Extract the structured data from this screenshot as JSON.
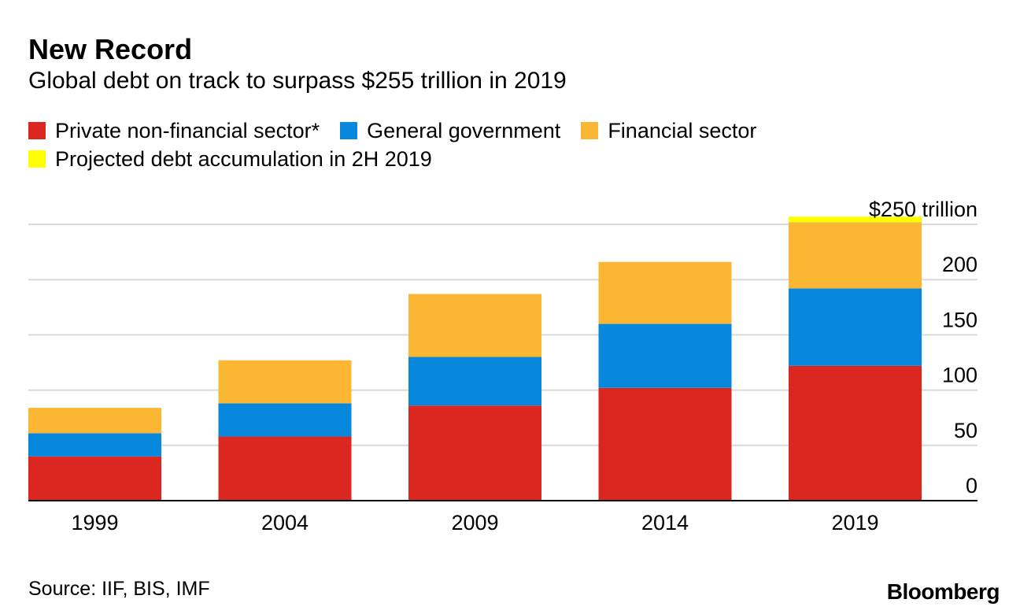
{
  "title": "New Record",
  "subtitle": "Global debt on track to surpass $255 trillion in 2019",
  "legend": [
    {
      "label": "Private non-financial sector*",
      "color": "#dc2620"
    },
    {
      "label": "General government",
      "color": "#0788dc"
    },
    {
      "label": "Financial sector",
      "color": "#fbb733"
    },
    {
      "label": "Projected debt accumulation in 2H 2019",
      "color": "#ffff00"
    }
  ],
  "chart_data": {
    "type": "bar",
    "stacked": true,
    "categories": [
      "1999",
      "2004",
      "2009",
      "2014",
      "2019"
    ],
    "series": [
      {
        "name": "Private non-financial sector*",
        "color": "#dc2620",
        "values": [
          40,
          58,
          86,
          102,
          122
        ]
      },
      {
        "name": "General government",
        "color": "#0788dc",
        "values": [
          21,
          30,
          44,
          58,
          70
        ]
      },
      {
        "name": "Financial sector",
        "color": "#fbb733",
        "values": [
          23,
          39,
          57,
          56,
          60
        ]
      },
      {
        "name": "Projected debt accumulation in 2H 2019",
        "color": "#ffff00",
        "values": [
          0,
          0,
          0,
          0,
          5
        ]
      }
    ],
    "ylim": [
      0,
      250
    ],
    "yticks": [
      0,
      50,
      100,
      150,
      200,
      250
    ],
    "ytick_labels": [
      "0",
      "50",
      "100",
      "150",
      "200",
      "$250 trillion"
    ],
    "axis_position": "right",
    "grid": true
  },
  "source": "Source: IIF, BIS, IMF",
  "brand": "Bloomberg"
}
